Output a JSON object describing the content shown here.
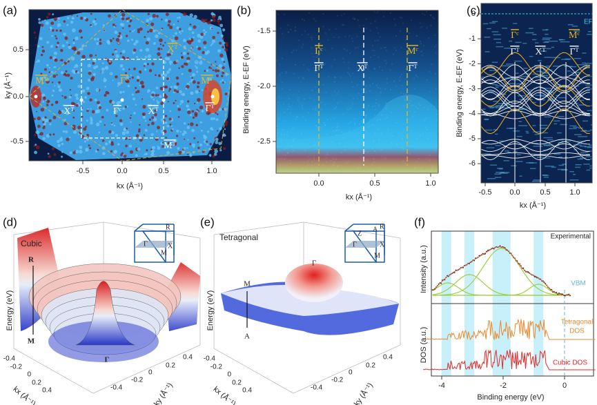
{
  "panel_a": {
    "label": "(a)",
    "xlabel": "kx (Å⁻¹)",
    "ylabel": "ky (Å⁻¹)",
    "xticks": [
      "-0.5",
      "0.0",
      "0.5",
      "1.0"
    ],
    "yticks": [
      "0.5",
      "0.0",
      "-0.5"
    ],
    "annotations": [
      "Xᵀ",
      "Mᵀ",
      "Γᶜ",
      "Mᵀ",
      "Γᵀ",
      "Xᵀ",
      "Γᶜ",
      "Xᵀ",
      "Mᵀ"
    ]
  },
  "panel_b": {
    "label": "(b)",
    "xlabel": "kx (Å⁻¹)",
    "ylabel": "Binding energy, E-EF (eV)",
    "xticks": [
      "0.0",
      "0.5",
      "1.0"
    ],
    "yticks": [
      "-1.5",
      "-2.0",
      "-2.5"
    ],
    "annotations": [
      "Γᶜ",
      "Γᵀ",
      "Xᵀ",
      "Mᶜ",
      "Γᵀ"
    ]
  },
  "panel_c": {
    "label": "(c)",
    "xlabel": "kx (Å⁻¹)",
    "ylabel": "Binding energy, E-EF (eV)",
    "xticks": [
      "-0.5",
      "0.0",
      "0.5",
      "1.0"
    ],
    "yticks": [
      "0",
      "-1",
      "-2",
      "-3",
      "-4",
      "-5",
      "-6"
    ],
    "fermi_label": "EF",
    "annotations": [
      "Γᶜ",
      "Γᵀ",
      "Xᵀ",
      "Mᶜ",
      "Γᵀ"
    ]
  },
  "panel_d": {
    "label": "(d)",
    "phase": "Cubic",
    "zlabel": "Energy (eV)",
    "xlabel": "kx (Å⁻¹)",
    "ylabel": "ky (Å⁻¹)",
    "xticks": [
      "-0.4",
      "-0.2",
      "0",
      "0.2",
      "0.4"
    ],
    "yticks": [
      "-0.4",
      "-0.2",
      "0",
      "0.2",
      "0.4"
    ],
    "points": [
      "R",
      "M",
      "Γ"
    ],
    "inset_points": [
      "R",
      "Γ",
      "X",
      "M"
    ]
  },
  "panel_e": {
    "label": "(e)",
    "phase": "Tetragonal",
    "zlabel": "Energy (eV)",
    "xlabel": "kx (Å⁻¹)",
    "ylabel": "ky (Å⁻¹)",
    "xticks": [
      "-0.4",
      "-0.2",
      "0",
      "0.2",
      "0.4"
    ],
    "yticks": [
      "-0.4",
      "-0.2",
      "0",
      "0.2",
      "0.4"
    ],
    "points": [
      "Γ",
      "M",
      "A"
    ],
    "inset_points": [
      "Z",
      "A",
      "R",
      "Γ",
      "X",
      "M"
    ]
  },
  "panel_f": {
    "label": "(f)",
    "top_ylabel": "Intensity (a.u.)",
    "bottom_ylabel": "DOS (a.u.)",
    "xlabel": "Binding energy (eV)",
    "xticks": [
      "-4",
      "-2",
      "0"
    ],
    "experimental_label": "Experimental",
    "vbm_label": "VBM",
    "tetragonal_label": [
      "Tetragonal",
      "DOS"
    ],
    "cubic_label": "Cubic DOS"
  }
}
